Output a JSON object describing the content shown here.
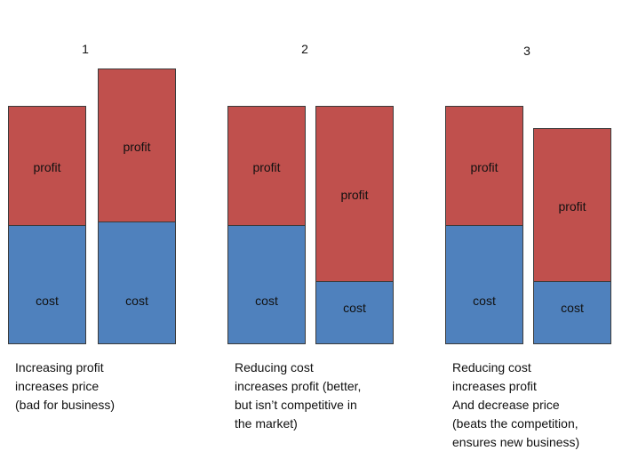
{
  "colors": {
    "profit": "#c0504d",
    "cost": "#4f81bd"
  },
  "scenarios": [
    {
      "number": "1",
      "bars": [
        {
          "profit": 135,
          "cost": 133,
          "profit_label": "profit",
          "cost_label": "cost"
        },
        {
          "profit": 173,
          "cost": 137,
          "profit_label": "profit",
          "cost_label": "cost"
        }
      ],
      "caption_lines": [
        "Increasing profit",
        "increases price",
        "(bad for business)"
      ]
    },
    {
      "number": "2",
      "bars": [
        {
          "profit": 135,
          "cost": 133,
          "profit_label": "profit",
          "cost_label": "cost"
        },
        {
          "profit": 198,
          "cost": 70,
          "profit_label": "profit",
          "cost_label": "cost"
        }
      ],
      "caption_lines": [
        "Reducing cost",
        "increases profit (better,",
        "but isn’t competitive in",
        "the market)"
      ]
    },
    {
      "number": "3",
      "bars": [
        {
          "profit": 135,
          "cost": 133,
          "profit_label": "profit",
          "cost_label": "cost"
        },
        {
          "profit": 173,
          "cost": 70,
          "profit_label": "profit",
          "cost_label": "cost"
        }
      ],
      "caption_lines": [
        "Reducing cost",
        "increases profit",
        "And decrease price",
        "(beats the competition,",
        "ensures new business)"
      ]
    }
  ]
}
